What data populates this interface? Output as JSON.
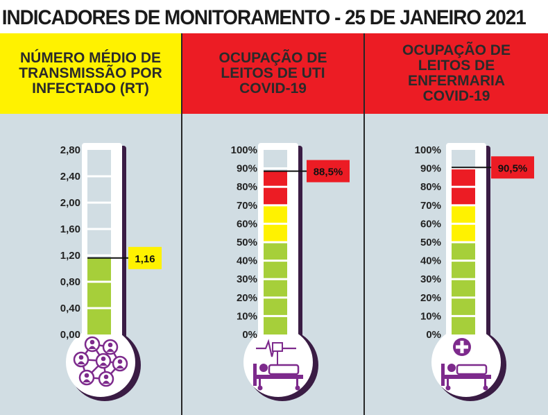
{
  "title": "INDICADORES DE MONITORAMENTO - 25 DE JANEIRO 2021",
  "colors": {
    "yellow": "#fff200",
    "red": "#ec1c24",
    "green": "#a6cf3a",
    "purple": "#7d2a8c",
    "panel_bg": "#d1dde3",
    "tube_empty": "#d1dde3"
  },
  "gauges": [
    {
      "id": "rt",
      "header": "NÚMERO MÉDIO DE\nTRANSMISSÃO POR\nINFECTADO (RT)",
      "header_color": "#fff200",
      "ticks": [
        "2,80",
        "2,40",
        "2,00",
        "1,60",
        "1,20",
        "0,80",
        "0,40",
        "0,00"
      ],
      "scale_max": 2.8,
      "value": 1.16,
      "value_label": "1,16",
      "value_color": "#fff200",
      "icon": "people-network-icon"
    },
    {
      "id": "uti",
      "header": "OCUPAÇÃO DE\nLEITOS DE UTI\nCOVID-19",
      "header_color": "#ec1c24",
      "ticks": [
        "100%",
        "90%",
        "80%",
        "70%",
        "60%",
        "50%",
        "40%",
        "30%",
        "20%",
        "10%",
        "0%"
      ],
      "scale_max": 100,
      "value": 88.5,
      "value_label": "88,5%",
      "value_color": "#ec1c24",
      "icon": "icu-bed-icon"
    },
    {
      "id": "enfermaria",
      "header": "OCUPAÇÃO DE\nLEITOS DE\nENFERMARIA\nCOVID-19",
      "header_color": "#ec1c24",
      "ticks": [
        "100%",
        "90%",
        "80%",
        "70%",
        "60%",
        "50%",
        "40%",
        "30%",
        "20%",
        "10%",
        "0%"
      ],
      "scale_max": 100,
      "value": 90.5,
      "value_label": "90,5%",
      "value_color": "#ec1c24",
      "icon": "ward-bed-icon"
    }
  ]
}
